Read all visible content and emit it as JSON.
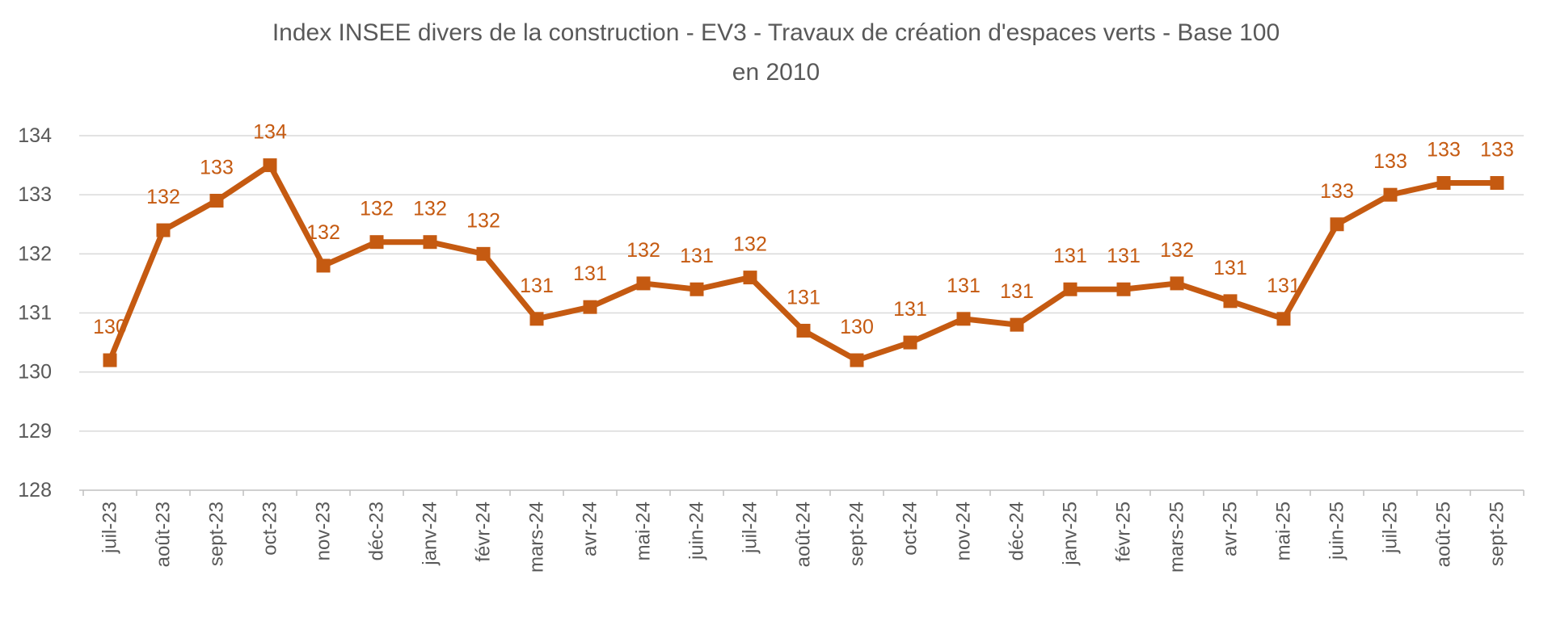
{
  "header": {
    "title_line1": "Index INSEE divers de la construction - EV3 - Travaux de création d'espaces verts - Base 100",
    "title_line2": "en 2010"
  },
  "chart_data": {
    "type": "line",
    "title": "Index INSEE divers de la construction - EV3 - Travaux de création d'espaces verts - Base 100 en 2010",
    "xlabel": "",
    "ylabel": "",
    "categories": [
      "juil-23",
      "août-23",
      "sept-23",
      "oct-23",
      "nov-23",
      "déc-23",
      "janv-24",
      "févr-24",
      "mars-24",
      "avr-24",
      "mai-24",
      "juin-24",
      "juil-24",
      "août-24",
      "sept-24",
      "oct-24",
      "nov-24",
      "déc-24",
      "janv-25",
      "févr-25",
      "mars-25",
      "avr-25",
      "mai-25",
      "juin-25",
      "juil-25",
      "août-25",
      "sept-25"
    ],
    "values": [
      130.2,
      132.4,
      132.9,
      133.5,
      131.8,
      132.2,
      132.2,
      132.0,
      130.9,
      131.1,
      131.5,
      131.4,
      131.6,
      130.7,
      130.2,
      130.5,
      130.9,
      130.8,
      131.4,
      131.4,
      131.5,
      131.2,
      130.9,
      132.5,
      133.0,
      133.2,
      133.2
    ],
    "point_labels": [
      "130",
      "132",
      "133",
      "134",
      "132",
      "132",
      "132",
      "132",
      "131",
      "131",
      "132",
      "131",
      "132",
      "131",
      "130",
      "131",
      "131",
      "131",
      "131",
      "131",
      "132",
      "131",
      "131",
      "133",
      "133",
      "133",
      "133"
    ],
    "ylim": [
      128,
      134
    ],
    "yticks": [
      134,
      133,
      132,
      131,
      130,
      129,
      128
    ],
    "grid": true,
    "legend": false,
    "marker": "square",
    "colors": {
      "series": "#C55A11",
      "data_label": "#C55A11",
      "axis_text": "#595959",
      "title_text": "#595959",
      "gridline": "#D9D9D9",
      "axis_line": "#BFBFBF"
    }
  }
}
